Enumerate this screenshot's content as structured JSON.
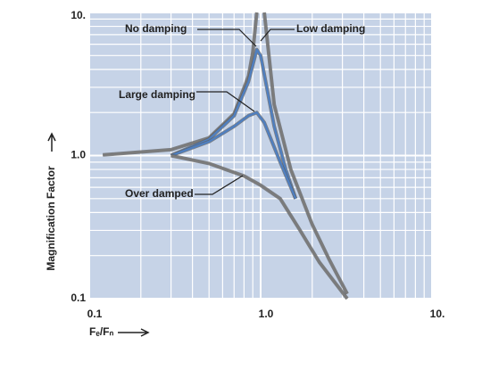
{
  "chart_data": {
    "type": "line",
    "x_label": "Fₑ/Fₙ",
    "y_label": "Magnification Factor",
    "log_x": true,
    "log_y": true,
    "grid": true,
    "xlim": [
      0.1,
      10
    ],
    "ylim": [
      0.1,
      10
    ],
    "xticks": [
      0.1,
      {
        "value": 1,
        "label": "1.0"
      },
      {
        "value": 10,
        "label": "10."
      }
    ],
    "yticks": [
      {
        "value": 10,
        "label": "10."
      },
      {
        "value": 1,
        "label": "1.0"
      },
      0.1
    ],
    "series": [
      {
        "name": "No damping",
        "color": "#7b7b7b",
        "x": [
          0.12,
          0.3,
          0.5,
          0.7,
          0.85,
          0.9,
          0.95,
          1.0,
          1.05,
          1.2,
          1.5,
          2,
          2.5,
          3.2
        ],
        "values": [
          1.01,
          1.1,
          1.33,
          1.96,
          3.6,
          5.26,
          10,
          null,
          10,
          2.27,
          0.8,
          0.33,
          0.19,
          0.108
        ]
      },
      {
        "name": "Low damping",
        "color": "#4f7fc0",
        "x": [
          0.3,
          0.5,
          0.7,
          0.85,
          0.95,
          1.0,
          1.2,
          1.4,
          1.6
        ],
        "values": [
          1.0,
          1.3,
          1.9,
          3.3,
          5.5,
          5,
          1.6,
          0.8,
          0.5
        ]
      },
      {
        "name": "Large damping",
        "color": "#4f7fc0",
        "x": [
          0.3,
          0.5,
          0.7,
          0.85,
          0.95,
          1.05,
          1.3,
          1.6
        ],
        "values": [
          1.0,
          1.25,
          1.6,
          1.9,
          2.0,
          1.7,
          0.9,
          0.5
        ]
      },
      {
        "name": "Over damped",
        "color": "#7b7b7b",
        "x": [
          0.3,
          0.5,
          0.8,
          1.0,
          1.3,
          1.7,
          2.2,
          3.2
        ],
        "values": [
          1.0,
          0.88,
          0.72,
          0.62,
          0.5,
          0.3,
          0.18,
          0.1
        ]
      }
    ]
  }
}
